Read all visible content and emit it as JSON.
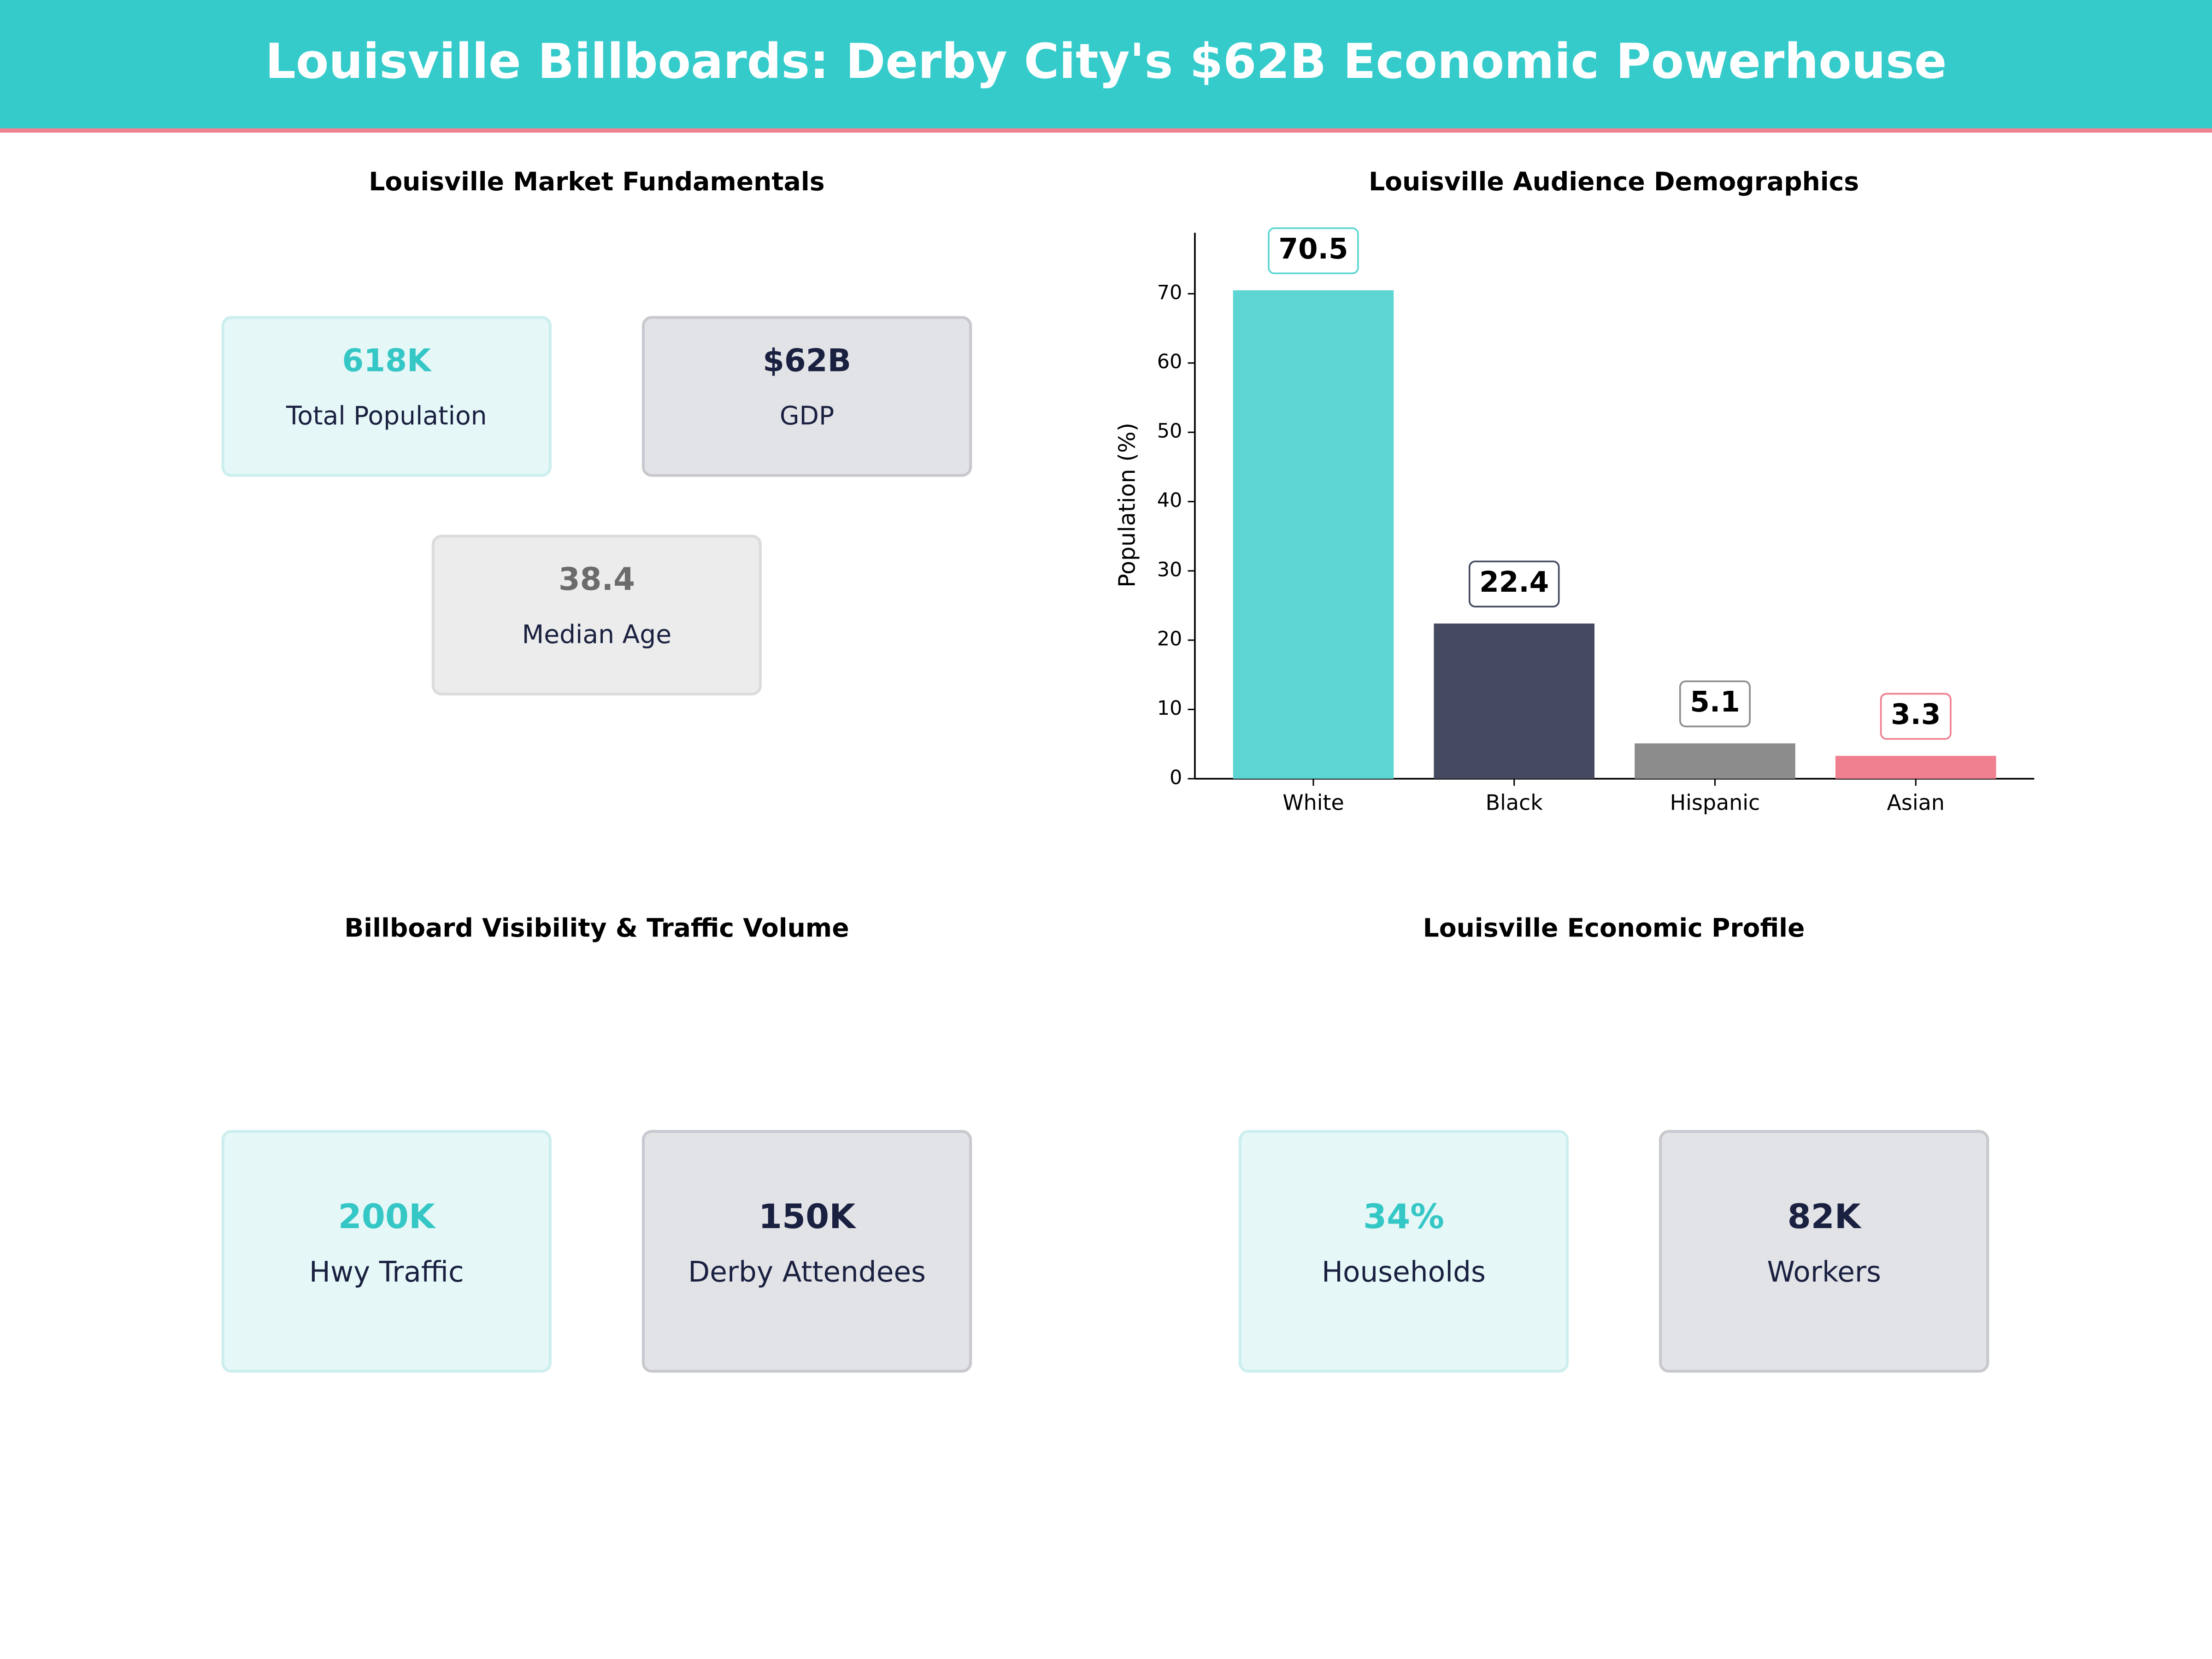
{
  "header": {
    "title": "Louisville Billboards: Derby City's $62B Economic Powerhouse"
  },
  "panels": [
    {
      "title": "Louisville Market Fundamentals",
      "cards": [
        {
          "value": "618K",
          "label": "Total Population"
        },
        {
          "value": "$62B",
          "label": "GDP"
        },
        {
          "value": "38.4",
          "label": "Median Age"
        }
      ]
    },
    {
      "title": "Billboard Visibility & Traffic Volume",
      "cards": [
        {
          "value": "200K",
          "label": "Hwy Traffic"
        },
        {
          "value": "150K",
          "label": "Derby Attendees"
        }
      ]
    },
    {
      "title": "Louisville Economic Profile",
      "cards": [
        {
          "value": "34%",
          "label": "Households"
        },
        {
          "value": "82K",
          "label": "Workers"
        }
      ]
    }
  ],
  "chart_data": {
    "type": "bar",
    "title": "Louisville Audience Demographics",
    "y_label": "Population (%)",
    "categories": [
      "White",
      "Black",
      "Hispanic",
      "Asian"
    ],
    "values": [
      70.5,
      22.4,
      5.1,
      3.3
    ],
    "colors": [
      "#5dd6d3",
      "#464a60",
      "#8c8c8c",
      "#f08090"
    ],
    "ylim": [
      0,
      78.8
    ],
    "yticks": [
      0,
      10,
      20,
      30,
      40,
      50,
      60,
      70
    ]
  }
}
